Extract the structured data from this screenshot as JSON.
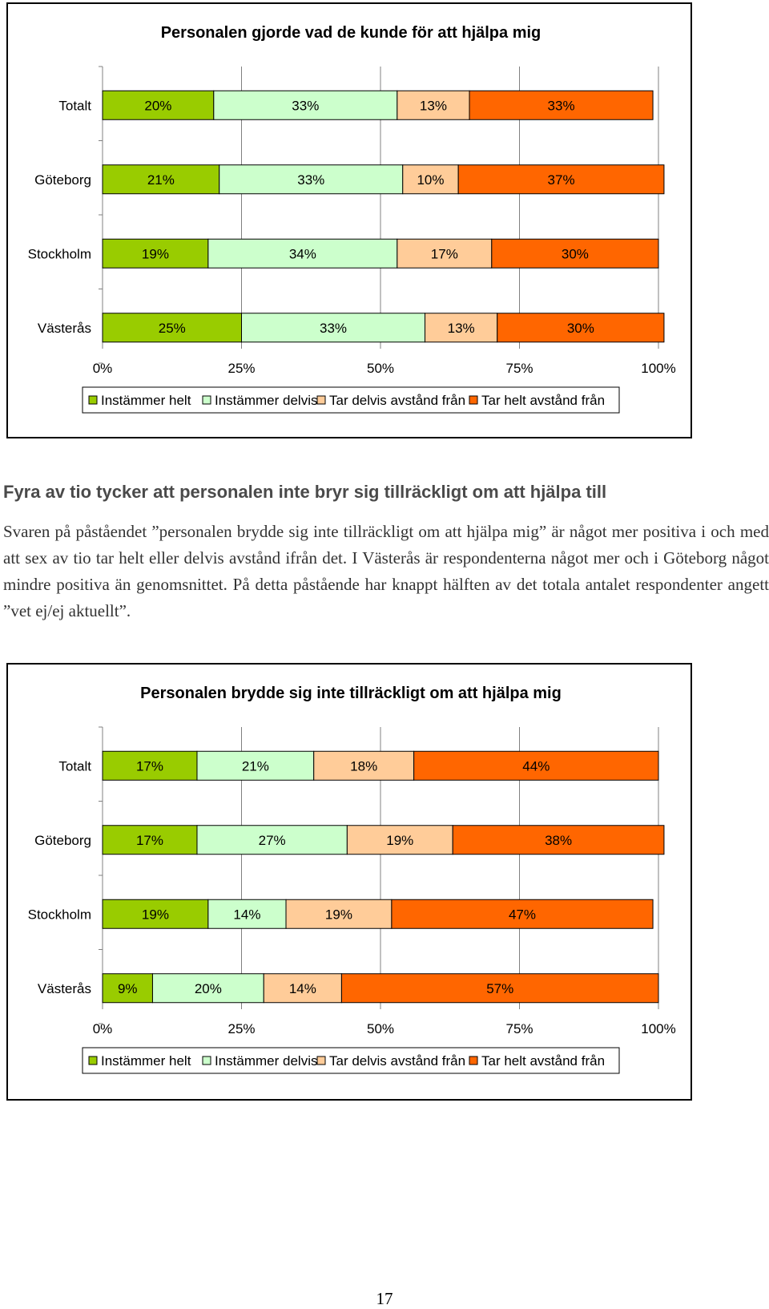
{
  "chart_data": [
    {
      "type": "bar",
      "orientation": "horizontal",
      "stacked": true,
      "title": "Personalen gjorde vad de kunde för att hjälpa mig",
      "categories": [
        "Totalt",
        "Göteborg",
        "Stockholm",
        "Västerås"
      ],
      "series": [
        {
          "name": "Instämmer helt",
          "color": "#99cc00",
          "values": [
            20,
            21,
            19,
            25
          ],
          "labels": [
            "20%",
            "21%",
            "19%",
            "25%"
          ]
        },
        {
          "name": "Instämmer delvis",
          "color": "#ccffcc",
          "values": [
            33,
            33,
            34,
            33
          ],
          "labels": [
            "33%",
            "33%",
            "34%",
            "33%"
          ]
        },
        {
          "name": "Tar delvis avstånd från",
          "color": "#ffcc99",
          "values": [
            13,
            10,
            17,
            13
          ],
          "labels": [
            "13%",
            "10%",
            "17%",
            "13%"
          ]
        },
        {
          "name": "Tar helt avstånd från",
          "color": "#ff6600",
          "values": [
            33,
            37,
            30,
            30
          ],
          "labels": [
            "33%",
            "37%",
            "30%",
            "30%"
          ]
        }
      ],
      "xlim": [
        0,
        100
      ],
      "xticks": [
        "0%",
        "25%",
        "50%",
        "75%",
        "100%"
      ],
      "grid": true,
      "legend": "bottom"
    },
    {
      "type": "bar",
      "orientation": "horizontal",
      "stacked": true,
      "title": "Personalen brydde sig inte tillräckligt om att hjälpa mig",
      "categories": [
        "Totalt",
        "Göteborg",
        "Stockholm",
        "Västerås"
      ],
      "series": [
        {
          "name": "Instämmer helt",
          "color": "#99cc00",
          "values": [
            17,
            17,
            19,
            9
          ],
          "labels": [
            "17%",
            "17%",
            "19%",
            "9%"
          ]
        },
        {
          "name": "Instämmer delvis",
          "color": "#ccffcc",
          "values": [
            21,
            27,
            14,
            20
          ],
          "labels": [
            "21%",
            "27%",
            "14%",
            "20%"
          ]
        },
        {
          "name": "Tar delvis avstånd från",
          "color": "#ffcc99",
          "values": [
            18,
            19,
            19,
            14
          ],
          "labels": [
            "18%",
            "19%",
            "19%",
            "14%"
          ]
        },
        {
          "name": "Tar helt avstånd från",
          "color": "#ff6600",
          "values": [
            44,
            38,
            47,
            57
          ],
          "labels": [
            "44%",
            "38%",
            "47%",
            "57%"
          ]
        }
      ],
      "xlim": [
        0,
        100
      ],
      "xticks": [
        "0%",
        "25%",
        "50%",
        "75%",
        "100%"
      ],
      "grid": true,
      "legend": "bottom"
    }
  ],
  "text": {
    "heading": "Fyra av tio tycker att personalen inte bryr sig tillräckligt om att hjälpa till",
    "paragraph": "Svaren på påståendet ”personalen brydde sig inte tillräckligt om att hjälpa mig” är något mer positiva i och med att sex av tio tar helt eller delvis avstånd ifrån det. I Västerås är respondenterna något mer och i Göteborg något mindre positiva än genomsnittet. På detta påstående har knappt hälften av det totala antalet respondenter angett ”vet ej/ej aktuellt”.",
    "page_number": "17"
  }
}
